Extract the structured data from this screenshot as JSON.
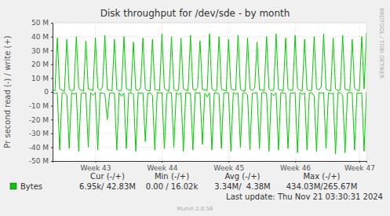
{
  "chart_data": {
    "type": "line",
    "title": "Disk throughput for /dev/sde - by month",
    "y_label": "Pr second read (-) / write (+)",
    "categories": [
      null,
      null,
      null,
      null,
      null,
      null,
      null,
      null,
      null,
      null,
      null,
      null,
      null,
      null,
      null,
      null,
      null,
      null,
      "Week 43",
      null,
      null,
      null,
      null,
      null,
      null,
      null,
      null,
      null,
      null,
      null,
      null,
      null,
      null,
      null,
      null,
      null,
      null,
      null,
      null,
      null,
      null,
      null,
      null,
      null,
      null,
      null,
      "Week 44",
      null,
      null,
      null,
      null,
      null,
      null,
      null,
      null,
      null,
      null,
      null,
      null,
      null,
      null,
      null,
      null,
      null,
      null,
      null,
      null,
      null,
      null,
      null,
      null,
      null,
      null,
      null,
      "Week 45",
      null,
      null,
      null,
      null,
      null,
      null,
      null,
      null,
      null,
      null,
      null,
      null,
      null,
      null,
      null,
      null,
      null,
      null,
      null,
      null,
      null,
      null,
      null,
      null,
      null,
      null,
      null,
      "Week 46",
      null,
      null,
      null,
      null,
      null,
      null,
      null,
      null,
      null,
      null,
      null,
      null,
      null,
      null,
      null,
      null,
      null,
      null,
      null,
      null,
      null,
      null,
      null,
      null,
      null,
      null,
      "Week 47",
      null,
      null,
      null
    ],
    "series": [
      {
        "name": "Bytes",
        "color": "#00cc00",
        "values": [
          1.5,
          0.8,
          39,
          2.2,
          1.1,
          0.6,
          38,
          1.8,
          0.9,
          1.4,
          40,
          2.5,
          1.2,
          0.7,
          37,
          1.9,
          1.6,
          0.9,
          39,
          2.8,
          1.0,
          3.5,
          41,
          1.7,
          1.3,
          0.8,
          38,
          2.0,
          0.7,
          1.2,
          40,
          2.4,
          1.5,
          0.6,
          36,
          1.6,
          1.1,
          2.9,
          39,
          2.1,
          0.9,
          0.8,
          38,
          1.8,
          1.4,
          1.0,
          42,
          2.6,
          1.2,
          0.7,
          40,
          1.9,
          0.8,
          1.5,
          39,
          2.3,
          1.3,
          0.9,
          41,
          2.0,
          1.0,
          3.1,
          37,
          1.7,
          1.6,
          0.8,
          42,
          2.2,
          0.9,
          1.1,
          40,
          1.8,
          1.2,
          0.6,
          38,
          2.5,
          1.4,
          1.3,
          41,
          1.9,
          0.8,
          0.9,
          39,
          2.1,
          1.1,
          2.7,
          36,
          1.6,
          1.5,
          0.7,
          40,
          2.4,
          0.9,
          1.2,
          42,
          1.8,
          1.3,
          0.8,
          39,
          2.0,
          1.0,
          1.4,
          41,
          2.6,
          1.2,
          0.9,
          38,
          1.7,
          0.7,
          1.1,
          40,
          2.3,
          1.4,
          3.8,
          42,
          1.9,
          1.1,
          0.8,
          39,
          2.2,
          0.9,
          1.3,
          41,
          1.8,
          1.5,
          0.7,
          38,
          2.5,
          1.2,
          0.9,
          40,
          2.1,
          42.8
        ]
      },
      {
        "color": "#00cc00",
        "values": [
          -0.6,
          -1.2,
          -0.8,
          -42,
          -0.9,
          -0.5,
          -2.1,
          -41,
          -0.4,
          -1.8,
          -0.7,
          -43,
          -1.1,
          -0.6,
          -0.9,
          -40,
          -0.7,
          -2.4,
          -0.5,
          -42,
          -0.5,
          -0.9,
          -1.3,
          -20,
          -1.0,
          -0.6,
          -0.8,
          -42,
          -0.6,
          -3.2,
          -0.9,
          -41,
          -0.8,
          -0.5,
          -1.5,
          -43,
          -0.4,
          -1.1,
          -0.7,
          -36,
          -0.9,
          -0.6,
          -2.6,
          -42,
          -0.5,
          -0.8,
          -0.6,
          -41,
          -1.2,
          -0.4,
          -0.9,
          -40,
          -0.6,
          -2.0,
          -0.7,
          -43,
          -0.8,
          -0.5,
          -1.1,
          -42,
          -0.4,
          -0.9,
          -0.6,
          -38,
          -1.0,
          -3.5,
          -0.8,
          -42,
          -0.6,
          -0.7,
          -1.4,
          -41,
          -0.9,
          -0.5,
          -0.6,
          -43,
          -0.5,
          -1.6,
          -0.9,
          -40,
          -0.7,
          -0.6,
          -2.2,
          -42,
          -1.1,
          -0.8,
          -0.5,
          -41,
          -0.6,
          -0.4,
          -0.9,
          -43,
          -0.8,
          -2.8,
          -0.6,
          -42,
          -0.5,
          -0.7,
          -1.2,
          -41,
          -0.9,
          -0.6,
          -0.8,
          -44,
          -0.4,
          -1.9,
          -0.7,
          -42,
          -1.0,
          -0.5,
          -3.0,
          -43,
          -0.6,
          -0.8,
          -0.6,
          -41,
          -0.7,
          -1.3,
          -0.9,
          -45,
          -0.5,
          -0.6,
          -2.5,
          -44,
          -0.9,
          -0.4,
          -0.7,
          -42,
          -0.6,
          -1.0,
          -0.8,
          -43,
          -0.007
        ]
      }
    ],
    "ylim": [
      -50,
      50
    ],
    "yticks": [
      {
        "value": -50,
        "label": "-50 M"
      },
      {
        "value": -40,
        "label": "-40 M"
      },
      {
        "value": -30,
        "label": "-30 M"
      },
      {
        "value": -20,
        "label": "-20 M"
      },
      {
        "value": -10,
        "label": "-10 M"
      },
      0,
      {
        "value": 10,
        "label": "10 M"
      },
      {
        "value": 20,
        "label": "20 M"
      },
      {
        "value": 30,
        "label": "30 M"
      },
      {
        "value": 40,
        "label": "40 M"
      },
      {
        "value": 50,
        "label": "50 M"
      }
    ],
    "grid": true,
    "legend": "bottom",
    "annotations": {
      "stats_headers": [
        "Cur (-/+)",
        "Min (-/+)",
        "Avg (-/+)",
        "Max (-/+)"
      ],
      "stats_values": [
        "6.95k/ 42.83M",
        "0.00 / 16.02k",
        "3.34M/  4.38M",
        "434.03M/265.67M"
      ],
      "last_update": "Last update: Thu Nov 21 03:30:31 2024",
      "footer": "Munin 2.0.56",
      "side_text": "RRDTOOL / TOBI OETIKER"
    }
  }
}
